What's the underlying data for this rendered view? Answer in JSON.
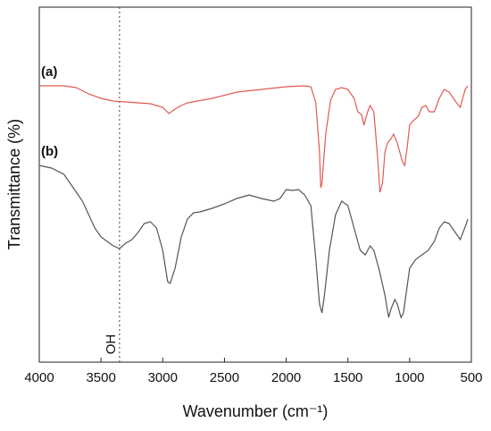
{
  "chart_data": {
    "type": "line",
    "x_label": "Wavenumber (cm⁻¹)",
    "y_label": "Transmittance (%)",
    "xlim": [
      4000,
      500
    ],
    "xticks": [
      4000,
      3500,
      3000,
      2500,
      2000,
      1500,
      1000,
      500
    ],
    "ylim": [
      0,
      397
    ],
    "annotation": {
      "text": "OH",
      "x": 3350
    },
    "series": [
      {
        "name": "(a)",
        "color": "#e05a55",
        "x": [
          4000,
          3800,
          3700,
          3600,
          3500,
          3400,
          3300,
          3100,
          3000,
          2950,
          2900,
          2850,
          2800,
          2600,
          2400,
          2200,
          2000,
          1850,
          1800,
          1760,
          1730,
          1720,
          1710,
          1680,
          1640,
          1600,
          1550,
          1500,
          1450,
          1420,
          1390,
          1370,
          1340,
          1320,
          1290,
          1260,
          1240,
          1220,
          1200,
          1180,
          1150,
          1130,
          1100,
          1060,
          1040,
          1020,
          1000,
          970,
          930,
          900,
          870,
          840,
          800,
          760,
          720,
          680,
          620,
          590,
          550,
          530
        ],
        "values": [
          309,
          309,
          307,
          300,
          295,
          292,
          291,
          289,
          285,
          278,
          283,
          287,
          290,
          295,
          302,
          305,
          308,
          309,
          308,
          290,
          235,
          195,
          200,
          255,
          293,
          305,
          307,
          305,
          295,
          280,
          277,
          265,
          280,
          287,
          280,
          230,
          190,
          200,
          235,
          245,
          250,
          255,
          245,
          225,
          220,
          240,
          265,
          270,
          275,
          285,
          287,
          280,
          280,
          295,
          305,
          302,
          290,
          285,
          305,
          309
        ]
      },
      {
        "name": "(b)",
        "color": "#555555",
        "x": [
          4000,
          3900,
          3800,
          3750,
          3700,
          3650,
          3600,
          3550,
          3500,
          3450,
          3400,
          3350,
          3300,
          3250,
          3200,
          3150,
          3100,
          3050,
          3000,
          2960,
          2940,
          2900,
          2850,
          2800,
          2750,
          2700,
          2600,
          2500,
          2400,
          2300,
          2200,
          2100,
          2050,
          2000,
          1950,
          1900,
          1850,
          1800,
          1760,
          1730,
          1710,
          1690,
          1650,
          1600,
          1550,
          1500,
          1450,
          1400,
          1360,
          1320,
          1290,
          1250,
          1200,
          1170,
          1150,
          1120,
          1100,
          1070,
          1050,
          1020,
          1000,
          950,
          900,
          850,
          800,
          760,
          720,
          680,
          620,
          590,
          540,
          530
        ],
        "values": [
          220,
          217,
          210,
          200,
          190,
          180,
          165,
          150,
          140,
          135,
          130,
          127,
          133,
          137,
          145,
          155,
          157,
          150,
          125,
          90,
          88,
          105,
          140,
          160,
          167,
          168,
          172,
          177,
          183,
          187,
          183,
          180,
          183,
          193,
          192,
          193,
          187,
          175,
          115,
          65,
          55,
          75,
          125,
          165,
          180,
          175,
          150,
          125,
          120,
          130,
          125,
          105,
          75,
          50,
          60,
          70,
          65,
          50,
          55,
          85,
          105,
          115,
          120,
          125,
          135,
          150,
          157,
          155,
          143,
          137,
          155,
          160
        ]
      }
    ]
  }
}
